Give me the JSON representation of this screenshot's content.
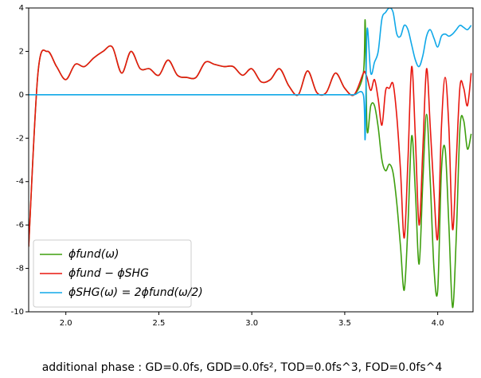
{
  "chart_data": {
    "type": "line",
    "x": [
      1.8,
      1.85,
      1.9,
      1.95,
      2.0,
      2.05,
      2.1,
      2.15,
      2.2,
      2.25,
      2.3,
      2.35,
      2.4,
      2.45,
      2.5,
      2.55,
      2.6,
      2.65,
      2.7,
      2.75,
      2.8,
      2.85,
      2.9,
      2.95,
      3.0,
      3.05,
      3.1,
      3.15,
      3.2,
      3.25,
      3.3,
      3.35,
      3.4,
      3.45,
      3.5,
      3.55,
      3.6,
      3.61,
      3.62,
      3.64,
      3.66,
      3.68,
      3.7,
      3.72,
      3.74,
      3.76,
      3.78,
      3.8,
      3.82,
      3.84,
      3.86,
      3.88,
      3.9,
      3.92,
      3.94,
      3.96,
      3.98,
      4.0,
      4.02,
      4.04,
      4.06,
      4.08,
      4.1,
      4.12,
      4.14,
      4.16,
      4.18
    ],
    "series": [
      {
        "name": "ϕfund(ω)",
        "color": "#3f9f0f",
        "values": [
          -7,
          1.0,
          2.0,
          1.3,
          0.7,
          1.4,
          1.3,
          1.7,
          2.0,
          2.2,
          1.0,
          2.0,
          1.2,
          1.2,
          0.9,
          1.6,
          0.9,
          0.8,
          0.8,
          1.5,
          1.4,
          1.3,
          1.3,
          0.9,
          1.2,
          0.6,
          0.7,
          1.2,
          0.4,
          0.0,
          1.1,
          0.1,
          0.1,
          1.0,
          0.3,
          0.0,
          1.0,
          3.4,
          -1.6,
          -0.5,
          -0.5,
          -1.5,
          -3.0,
          -3.5,
          -3.2,
          -3.6,
          -5.0,
          -7.0,
          -9.0,
          -6.0,
          -1.9,
          -4.5,
          -7.8,
          -4.0,
          -0.9,
          -4.0,
          -8.0,
          -9.0,
          -3.5,
          -2.5,
          -6.0,
          -9.8,
          -6.5,
          -1.5,
          -1.2,
          -2.5,
          -1.8
        ]
      },
      {
        "name": "ϕfund − ϕSHG",
        "color": "#e8170f",
        "values": [
          -7,
          1.0,
          2.0,
          1.3,
          0.7,
          1.4,
          1.3,
          1.7,
          2.0,
          2.2,
          1.0,
          2.0,
          1.2,
          1.2,
          0.9,
          1.6,
          0.9,
          0.8,
          0.8,
          1.5,
          1.4,
          1.3,
          1.3,
          0.9,
          1.2,
          0.6,
          0.7,
          1.2,
          0.4,
          0.0,
          1.1,
          0.1,
          0.1,
          1.0,
          0.3,
          0.0,
          1.0,
          1.0,
          0.8,
          0.2,
          0.7,
          -0.2,
          -1.4,
          0.2,
          0.3,
          0.5,
          -1.0,
          -3.5,
          -6.6,
          -3.0,
          1.3,
          -2.0,
          -6.0,
          -2.5,
          1.2,
          -1.5,
          -4.5,
          -6.6,
          -1.5,
          0.8,
          -1.5,
          -6.2,
          -3.0,
          0.4,
          0.3,
          -0.5,
          1.0
        ]
      },
      {
        "name": "ϕSHG(ω) = 2ϕfund(ω/2)",
        "color": "#10a8e8",
        "values": [
          0,
          0,
          0,
          0,
          0,
          0,
          0,
          0,
          0,
          0,
          0,
          0,
          0,
          0,
          0,
          0,
          0,
          0,
          0,
          0,
          0,
          0,
          0,
          0,
          0,
          0,
          0,
          0,
          0,
          0,
          0,
          0,
          0,
          0,
          0,
          0,
          0,
          -2.0,
          3.0,
          1.0,
          1.5,
          2.0,
          3.5,
          3.8,
          4.0,
          3.8,
          2.8,
          2.7,
          3.2,
          3.0,
          2.3,
          1.6,
          1.3,
          1.8,
          2.7,
          3.0,
          2.6,
          2.2,
          2.7,
          2.8,
          2.7,
          2.8,
          3.0,
          3.2,
          3.1,
          3.0,
          3.2
        ]
      }
    ],
    "xlim": [
      1.8,
      4.19
    ],
    "ylim": [
      -10,
      4
    ],
    "xticks": [
      {
        "value": 2.0,
        "label": "2.0"
      },
      {
        "value": 2.5,
        "label": "2.5"
      },
      {
        "value": 3.0,
        "label": "3.0"
      },
      {
        "value": 3.5,
        "label": "3.5"
      },
      {
        "value": 4.0,
        "label": "4.0"
      }
    ],
    "yticks": [
      -10,
      -8,
      -6,
      -4,
      -2,
      0,
      2,
      4
    ],
    "legend": "lower left",
    "footer": "additional phase : GD=0.0fs, GDD=0.0fs², TOD=0.0fs^3, FOD=0.0fs^4"
  }
}
